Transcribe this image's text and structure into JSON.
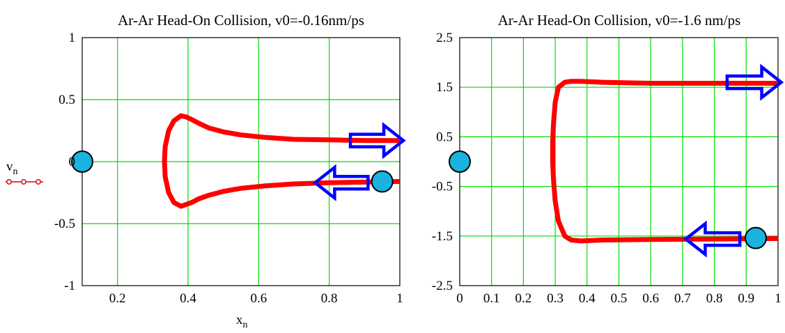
{
  "chart_data": [
    {
      "type": "line",
      "title": "Ar-Ar Head-On Collision, v0=-0.16nm/ps",
      "xlabel": "x",
      "xlabel_sub": "n",
      "ylabel": "v",
      "ylabel_sub": "n",
      "xlim": [
        0.1,
        1.0
      ],
      "ylim": [
        -1.0,
        1.0
      ],
      "xticks": [
        0.2,
        0.4,
        0.6,
        0.8,
        1.0
      ],
      "xtick_labels": [
        "0.2",
        "0.4",
        "0.6",
        "0.8",
        "1"
      ],
      "yticks": [
        -1.0,
        -0.5,
        0.0,
        0.5,
        1.0
      ],
      "ytick_labels": [
        "-1",
        "-0.5",
        "0",
        "0.5",
        "1"
      ],
      "x_gridlines": [
        0.2,
        0.4,
        0.6,
        0.8
      ],
      "y_gridlines": [
        -0.5,
        0.0,
        0.5
      ],
      "grid": true,
      "grid_color": "#00dd00",
      "series_color": "#ff0000",
      "arrow_color": "#0000ff",
      "ball_color": "#19b3e0",
      "legend": "left, line with circle markers",
      "series": [
        {
          "x": [
            1.0,
            0.9,
            0.8,
            0.7,
            0.62,
            0.55,
            0.5,
            0.46,
            0.43,
            0.41,
            0.395,
            0.38,
            0.36,
            0.345,
            0.335,
            0.333,
            0.335,
            0.345,
            0.36,
            0.38,
            0.395,
            0.41,
            0.43,
            0.46,
            0.5,
            0.55,
            0.62,
            0.7,
            0.8,
            0.9,
            1.0
          ],
          "y": [
            -0.16,
            -0.165,
            -0.17,
            -0.18,
            -0.195,
            -0.215,
            -0.24,
            -0.27,
            -0.3,
            -0.33,
            -0.345,
            -0.36,
            -0.33,
            -0.25,
            -0.12,
            0.0,
            0.12,
            0.25,
            0.33,
            0.37,
            0.36,
            0.34,
            0.31,
            0.27,
            0.24,
            0.215,
            0.195,
            0.18,
            0.175,
            0.17,
            0.17
          ]
        }
      ],
      "annotations": {
        "incoming_arrow": {
          "x_tip": 0.76,
          "x_tail": 0.91,
          "y": -0.17,
          "direction": "left"
        },
        "outgoing_arrow": {
          "x_tail": 0.86,
          "x_tip": 1.01,
          "y": 0.17,
          "direction": "right"
        },
        "balls": [
          {
            "x": 0.1,
            "y": 0.0
          },
          {
            "x": 0.95,
            "y": -0.16
          }
        ]
      }
    },
    {
      "type": "line",
      "title": "Ar-Ar Head-On Collision, v0=-1.6 nm/ps",
      "xlim": [
        0.0,
        1.0
      ],
      "ylim": [
        -2.5,
        2.5
      ],
      "xticks": [
        0,
        0.1,
        0.2,
        0.3,
        0.4,
        0.5,
        0.6,
        0.7,
        0.8,
        0.9,
        1.0
      ],
      "xtick_labels": [
        "0",
        "0.1",
        "0.2",
        "0.3",
        "0.4",
        "0.5",
        "0.6",
        "0.7",
        "0.8",
        "0.9",
        "1"
      ],
      "yticks": [
        -2.5,
        -1.5,
        -0.5,
        0.5,
        1.5,
        2.5
      ],
      "ytick_labels": [
        "-2.5",
        "-1.5",
        "-0.5",
        "0.5",
        "1.5",
        "2.5"
      ],
      "x_gridlines": [
        0.1,
        0.2,
        0.3,
        0.4,
        0.5,
        0.6,
        0.7,
        0.8,
        0.9
      ],
      "y_gridlines": [
        -1.5,
        -0.5,
        0.5,
        1.5
      ],
      "grid": true,
      "grid_color": "#00dd00",
      "series_color": "#ff0000",
      "arrow_color": "#0000ff",
      "ball_color": "#19b3e0",
      "series": [
        {
          "x": [
            1.0,
            0.8,
            0.6,
            0.45,
            0.38,
            0.35,
            0.33,
            0.31,
            0.3,
            0.295,
            0.292,
            0.292,
            0.295,
            0.3,
            0.31,
            0.33,
            0.35,
            0.38,
            0.45,
            0.6,
            0.8,
            1.0
          ],
          "y": [
            -1.55,
            -1.56,
            -1.57,
            -1.58,
            -1.6,
            -1.58,
            -1.5,
            -1.2,
            -0.8,
            -0.4,
            0.0,
            0.4,
            0.8,
            1.2,
            1.5,
            1.6,
            1.62,
            1.62,
            1.6,
            1.58,
            1.58,
            1.58
          ]
        }
      ],
      "annotations": {
        "incoming_arrow": {
          "x_tip": 0.71,
          "x_tail": 0.88,
          "y": -1.56,
          "direction": "left"
        },
        "outgoing_arrow": {
          "x_tail": 0.84,
          "x_tip": 1.01,
          "y": 1.6,
          "direction": "right"
        },
        "balls": [
          {
            "x": 0.0,
            "y": 0.0
          },
          {
            "x": 0.93,
            "y": -1.54
          }
        ]
      }
    }
  ]
}
